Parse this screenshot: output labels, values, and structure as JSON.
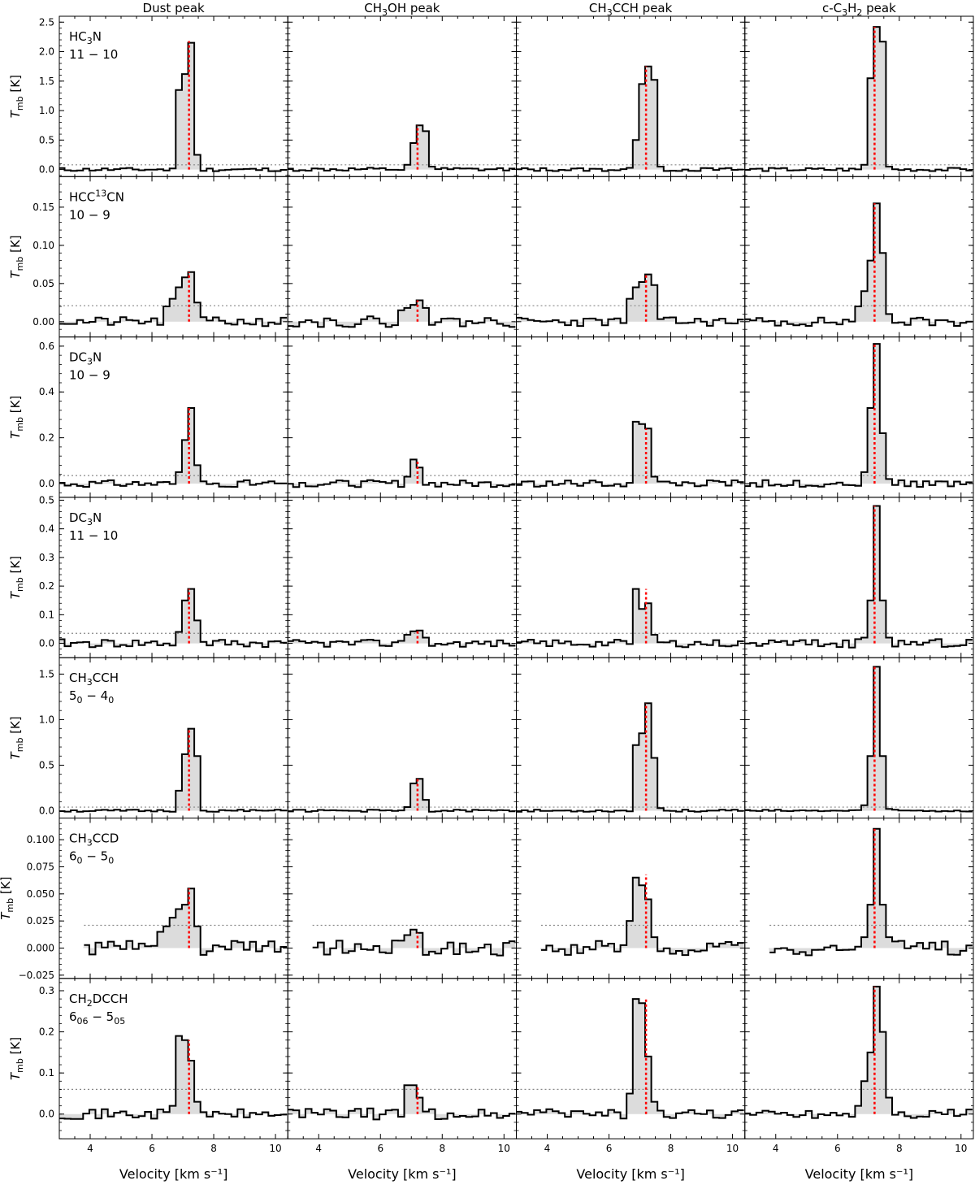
{
  "figure": {
    "columns": [
      "Dust peak",
      "CH3OH peak",
      "CH3CCH peak",
      "c-C3H2 peak"
    ],
    "xlabel": "Velocity  [km s⁻¹]",
    "ylabel": "T_mb [K]"
  },
  "chart_data": [
    {
      "type": "line",
      "step": true,
      "row": 0,
      "line": "HC3N",
      "transition": "11 − 10",
      "ylabel": "T_mb [K]",
      "xlabel": "Velocity  [km s⁻¹]",
      "xlim": [
        3.0,
        10.4
      ],
      "ylim": [
        -0.12,
        2.6
      ],
      "yticks": [
        0.0,
        0.5,
        1.0,
        1.5,
        2.0,
        2.5
      ],
      "yticklabels": [
        "0.0",
        "0.5",
        "1.0",
        "1.5",
        "2.0",
        "2.5"
      ],
      "xticks": [
        4,
        6,
        8,
        10
      ],
      "xticklabels": [
        "4",
        "6",
        "8",
        "10"
      ],
      "rms_level": 0.08,
      "vlsr": 7.2,
      "panels": [
        {
          "column": "Dust peak",
          "peaks": [
            [
              6.87,
              1.35
            ],
            [
              7.07,
              1.62
            ],
            [
              7.27,
              2.15
            ],
            [
              7.47,
              0.25
            ]
          ],
          "marker_top": 2.18,
          "noise": 0.03,
          "seed": 11
        },
        {
          "column": "CH3OH peak",
          "peaks": [
            [
              6.87,
              0.08
            ],
            [
              7.07,
              0.45
            ],
            [
              7.27,
              0.75
            ],
            [
              7.47,
              0.65
            ],
            [
              7.67,
              0.05
            ]
          ],
          "marker_top": 0.75,
          "noise": 0.03,
          "seed": 12
        },
        {
          "column": "CH3CCH peak",
          "peaks": [
            [
              6.87,
              0.5
            ],
            [
              7.07,
              1.45
            ],
            [
              7.27,
              1.75
            ],
            [
              7.47,
              1.52
            ],
            [
              7.67,
              0.05
            ]
          ],
          "marker_top": 1.75,
          "noise": 0.03,
          "seed": 13
        },
        {
          "column": "c-C3H2 peak",
          "peaks": [
            [
              6.87,
              0.08
            ],
            [
              7.07,
              1.55
            ],
            [
              7.27,
              2.42
            ],
            [
              7.47,
              2.17
            ],
            [
              7.67,
              0.05
            ]
          ],
          "marker_top": 2.42,
          "noise": 0.03,
          "seed": 14
        }
      ]
    },
    {
      "type": "line",
      "step": true,
      "row": 1,
      "line": "HCC13CN",
      "transition": "10 − 9",
      "ylabel": "T_mb [K]",
      "xlabel": "Velocity  [km s⁻¹]",
      "xlim": [
        3.0,
        10.4
      ],
      "ylim": [
        -0.02,
        0.19
      ],
      "yticks": [
        0.0,
        0.05,
        0.1,
        0.15
      ],
      "yticklabels": [
        "0.00",
        "0.05",
        "0.10",
        "0.15"
      ],
      "xticks": [
        4,
        6,
        8,
        10
      ],
      "xticklabels": [
        "4",
        "6",
        "8",
        "10"
      ],
      "rms_level": 0.021,
      "vlsr": 7.2,
      "panels": [
        {
          "column": "Dust peak",
          "peaks": [
            [
              6.47,
              0.02
            ],
            [
              6.67,
              0.03
            ],
            [
              6.87,
              0.045
            ],
            [
              7.07,
              0.058
            ],
            [
              7.27,
              0.065
            ],
            [
              7.47,
              0.025
            ]
          ],
          "marker_top": 0.065,
          "noise": 0.006,
          "seed": 21
        },
        {
          "column": "CH3OH peak",
          "peaks": [
            [
              6.67,
              0.015
            ],
            [
              6.87,
              0.018
            ],
            [
              7.07,
              0.022
            ],
            [
              7.27,
              0.028
            ],
            [
              7.47,
              0.018
            ]
          ],
          "marker_top": 0.028,
          "noise": 0.007,
          "seed": 22
        },
        {
          "column": "CH3CCH peak",
          "peaks": [
            [
              6.67,
              0.03
            ],
            [
              6.87,
              0.045
            ],
            [
              7.07,
              0.052
            ],
            [
              7.27,
              0.062
            ],
            [
              7.47,
              0.048
            ]
          ],
          "marker_top": 0.062,
          "noise": 0.006,
          "seed": 23
        },
        {
          "column": "c-C3H2 peak",
          "peaks": [
            [
              6.67,
              0.02
            ],
            [
              6.87,
              0.04
            ],
            [
              7.07,
              0.08
            ],
            [
              7.27,
              0.155
            ],
            [
              7.47,
              0.09
            ],
            [
              7.67,
              0.01
            ]
          ],
          "marker_top": 0.155,
          "noise": 0.006,
          "seed": 24
        }
      ]
    },
    {
      "type": "line",
      "step": true,
      "row": 2,
      "line": "DC3N",
      "transition": "10 − 9",
      "ylabel": "T_mb [K]",
      "xlabel": "Velocity  [km s⁻¹]",
      "xlim": [
        3.0,
        10.4
      ],
      "ylim": [
        -0.06,
        0.64
      ],
      "yticks": [
        0.0,
        0.2,
        0.4,
        0.6
      ],
      "yticklabels": [
        "0.0",
        "0.2",
        "0.4",
        "0.6"
      ],
      "xticks": [
        4,
        6,
        8,
        10
      ],
      "xticklabels": [
        "4",
        "6",
        "8",
        "10"
      ],
      "rms_level": 0.035,
      "vlsr": 7.2,
      "panels": [
        {
          "column": "Dust peak",
          "peaks": [
            [
              6.87,
              0.05
            ],
            [
              7.07,
              0.19
            ],
            [
              7.27,
              0.33
            ],
            [
              7.47,
              0.08
            ]
          ],
          "marker_top": 0.33,
          "noise": 0.015,
          "seed": 31
        },
        {
          "column": "CH3OH peak",
          "peaks": [
            [
              6.87,
              0.03
            ],
            [
              7.07,
              0.105
            ],
            [
              7.27,
              0.07
            ]
          ],
          "marker_top": 0.105,
          "noise": 0.015,
          "seed": 32
        },
        {
          "column": "CH3CCH peak",
          "peaks": [
            [
              6.87,
              0.27
            ],
            [
              7.07,
              0.26
            ],
            [
              7.27,
              0.24
            ],
            [
              7.47,
              0.03
            ]
          ],
          "marker_top": 0.24,
          "noise": 0.015,
          "seed": 33
        },
        {
          "column": "c-C3H2 peak",
          "peaks": [
            [
              6.87,
              0.05
            ],
            [
              7.07,
              0.33
            ],
            [
              7.27,
              0.61
            ],
            [
              7.47,
              0.22
            ],
            [
              7.67,
              0.02
            ]
          ],
          "marker_top": 0.61,
          "noise": 0.015,
          "seed": 34
        }
      ]
    },
    {
      "type": "line",
      "step": true,
      "row": 3,
      "line": "DC3N",
      "transition": "11 − 10",
      "ylabel": "T_mb [K]",
      "xlabel": "Velocity  [km s⁻¹]",
      "xlim": [
        3.0,
        10.4
      ],
      "ylim": [
        -0.05,
        0.51
      ],
      "yticks": [
        0.0,
        0.1,
        0.2,
        0.3,
        0.4,
        0.5
      ],
      "yticklabels": [
        "0.0",
        "0.1",
        "0.2",
        "0.3",
        "0.4",
        "0.5"
      ],
      "xticks": [
        4,
        6,
        8,
        10
      ],
      "xticklabels": [
        "4",
        "6",
        "8",
        "10"
      ],
      "rms_level": 0.035,
      "vlsr": 7.2,
      "panels": [
        {
          "column": "Dust peak",
          "peaks": [
            [
              6.87,
              0.04
            ],
            [
              7.07,
              0.15
            ],
            [
              7.27,
              0.19
            ],
            [
              7.47,
              0.08
            ]
          ],
          "marker_top": 0.19,
          "noise": 0.015,
          "seed": 41
        },
        {
          "column": "CH3OH peak",
          "peaks": [
            [
              6.87,
              0.03
            ],
            [
              7.07,
              0.042
            ],
            [
              7.27,
              0.045
            ],
            [
              7.47,
              0.02
            ]
          ],
          "marker_top": 0.045,
          "noise": 0.013,
          "seed": 42
        },
        {
          "column": "CH3CCH peak",
          "peaks": [
            [
              6.87,
              0.19
            ],
            [
              7.07,
              0.12
            ],
            [
              7.27,
              0.14
            ],
            [
              7.47,
              0.03
            ]
          ],
          "marker_top": 0.19,
          "noise": 0.013,
          "seed": 43
        },
        {
          "column": "c-C3H2 peak",
          "peaks": [
            [
              6.87,
              0.02
            ],
            [
              7.07,
              0.15
            ],
            [
              7.27,
              0.48
            ],
            [
              7.47,
              0.15
            ],
            [
              7.67,
              0.02
            ]
          ],
          "marker_top": 0.48,
          "noise": 0.015,
          "seed": 44
        }
      ]
    },
    {
      "type": "line",
      "step": true,
      "row": 4,
      "line": "CH3CCH",
      "transition": "5_0 − 4_0",
      "ylabel": "T_mb [K]",
      "xlabel": "Velocity  [km s⁻¹]",
      "xlim": [
        3.0,
        10.4
      ],
      "ylim": [
        -0.08,
        1.68
      ],
      "yticks": [
        0.0,
        0.5,
        1.0,
        1.5
      ],
      "yticklabels": [
        "0.0",
        "0.5",
        "1.0",
        "1.5"
      ],
      "xticks": [
        4,
        6,
        8,
        10
      ],
      "xticklabels": [
        "4",
        "6",
        "8",
        "10"
      ],
      "rms_level": 0.04,
      "vlsr": 7.2,
      "panels": [
        {
          "column": "Dust peak",
          "peaks": [
            [
              6.87,
              0.22
            ],
            [
              7.07,
              0.62
            ],
            [
              7.27,
              0.9
            ],
            [
              7.47,
              0.6
            ]
          ],
          "marker_top": 0.9,
          "noise": 0.012,
          "seed": 51
        },
        {
          "column": "CH3OH peak",
          "peaks": [
            [
              6.87,
              0.04
            ],
            [
              7.07,
              0.3
            ],
            [
              7.27,
              0.35
            ],
            [
              7.47,
              0.12
            ]
          ],
          "marker_top": 0.35,
          "noise": 0.012,
          "seed": 52
        },
        {
          "column": "CH3CCH peak",
          "peaks": [
            [
              6.87,
              0.72
            ],
            [
              7.07,
              0.85
            ],
            [
              7.27,
              1.18
            ],
            [
              7.47,
              0.58
            ],
            [
              7.67,
              0.03
            ]
          ],
          "marker_top": 1.18,
          "noise": 0.012,
          "seed": 53
        },
        {
          "column": "c-C3H2 peak",
          "peaks": [
            [
              6.87,
              0.06
            ],
            [
              7.07,
              0.6
            ],
            [
              7.27,
              1.58
            ],
            [
              7.47,
              0.6
            ],
            [
              7.67,
              0.02
            ]
          ],
          "marker_top": 1.58,
          "noise": 0.012,
          "seed": 54
        }
      ]
    },
    {
      "type": "line",
      "step": true,
      "row": 5,
      "line": "CH3CCD",
      "transition": "6_0 − 5_0",
      "ylabel": "T_mb [K]",
      "xlabel": "Velocity  [km s⁻¹]",
      "xlim": [
        3.0,
        10.4
      ],
      "ylim": [
        -0.028,
        0.12
      ],
      "yticks": [
        -0.025,
        0.0,
        0.025,
        0.05,
        0.075,
        0.1
      ],
      "yticklabels": [
        "−0.025",
        "0.000",
        "0.025",
        "0.050",
        "0.075",
        "0.100"
      ],
      "xticks": [
        4,
        6,
        8,
        10
      ],
      "xticklabels": [
        "4",
        "6",
        "8",
        "10"
      ],
      "rms_level": 0.021,
      "vlsr": 7.2,
      "data_start": 3.8,
      "panels": [
        {
          "column": "Dust peak",
          "peaks": [
            [
              6.27,
              0.015
            ],
            [
              6.47,
              0.02
            ],
            [
              6.67,
              0.028
            ],
            [
              6.87,
              0.036
            ],
            [
              7.07,
              0.04
            ],
            [
              7.27,
              0.055
            ],
            [
              7.47,
              0.02
            ]
          ],
          "marker_top": 0.055,
          "noise": 0.007,
          "seed": 61
        },
        {
          "column": "CH3OH peak",
          "peaks": [
            [
              6.87,
              0.012
            ],
            [
              7.07,
              0.017
            ],
            [
              7.27,
              0.014
            ]
          ],
          "marker_top": 0.014,
          "noise": 0.007,
          "seed": 62
        },
        {
          "column": "CH3CCH peak",
          "peaks": [
            [
              6.67,
              0.025
            ],
            [
              6.87,
              0.065
            ],
            [
              7.07,
              0.058
            ],
            [
              7.27,
              0.045
            ],
            [
              7.47,
              0.01
            ]
          ],
          "marker_top": 0.068,
          "noise": 0.007,
          "seed": 63
        },
        {
          "column": "c-C3H2 peak",
          "peaks": [
            [
              6.87,
              0.01
            ],
            [
              7.07,
              0.04
            ],
            [
              7.27,
              0.11
            ],
            [
              7.47,
              0.04
            ],
            [
              7.67,
              0.01
            ]
          ],
          "marker_top": 0.11,
          "noise": 0.007,
          "seed": 64
        }
      ]
    },
    {
      "type": "line",
      "step": true,
      "row": 6,
      "line": "CH2DCCH",
      "transition": "6_06 − 5_05",
      "ylabel": "T_mb [K]",
      "xlabel": "Velocity  [km s⁻¹]",
      "xlim": [
        3.0,
        10.4
      ],
      "ylim": [
        -0.06,
        0.33
      ],
      "yticks": [
        0.0,
        0.1,
        0.2,
        0.3
      ],
      "yticklabels": [
        "0.0",
        "0.1",
        "0.2",
        "0.3"
      ],
      "xticks": [
        4,
        6,
        8,
        10
      ],
      "xticklabels": [
        "4",
        "6",
        "8",
        "10"
      ],
      "rms_level": 0.06,
      "vlsr": 7.2,
      "panels": [
        {
          "column": "Dust peak",
          "peaks": [
            [
              6.67,
              0.02
            ],
            [
              6.87,
              0.19
            ],
            [
              7.07,
              0.18
            ],
            [
              7.27,
              0.13
            ],
            [
              7.47,
              0.03
            ]
          ],
          "marker_top": 0.18,
          "noise": 0.012,
          "seed": 71
        },
        {
          "column": "CH3OH peak",
          "peaks": [
            [
              6.87,
              0.07
            ],
            [
              7.07,
              0.07
            ],
            [
              7.27,
              0.04
            ]
          ],
          "marker_top": 0.07,
          "noise": 0.014,
          "seed": 72
        },
        {
          "column": "CH3CCH peak",
          "peaks": [
            [
              6.67,
              0.05
            ],
            [
              6.87,
              0.28
            ],
            [
              7.07,
              0.27
            ],
            [
              7.27,
              0.14
            ],
            [
              7.47,
              0.03
            ]
          ],
          "marker_top": 0.28,
          "noise": 0.012,
          "seed": 73
        },
        {
          "column": "c-C3H2 peak",
          "peaks": [
            [
              6.67,
              0.02
            ],
            [
              6.87,
              0.08
            ],
            [
              7.07,
              0.15
            ],
            [
              7.27,
              0.31
            ],
            [
              7.47,
              0.2
            ],
            [
              7.67,
              0.04
            ]
          ],
          "marker_top": 0.31,
          "noise": 0.012,
          "seed": 74
        }
      ]
    }
  ]
}
